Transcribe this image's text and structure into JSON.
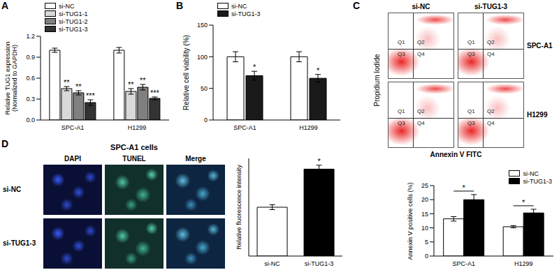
{
  "chart_data": [
    {
      "panel": "A",
      "type": "bar",
      "categories": [
        "SPC-A1",
        "H1299"
      ],
      "ylabel": [
        "Relative TUG1 expression",
        "(Normalized to GAPDH)"
      ],
      "ylim": [
        0,
        1.2
      ],
      "yticks": [
        {
          "value": 0,
          "label": "0.0"
        },
        0.3,
        0.6,
        0.9,
        1.2
      ],
      "legend": "upper left",
      "series": [
        {
          "name": "si-NC",
          "color": "#ffffff",
          "values": [
            1.0,
            1.0
          ],
          "errors": [
            0.03,
            0.04
          ]
        },
        {
          "name": "si-TUG1-1",
          "color": "#d9d9d9",
          "values": [
            0.45,
            0.41
          ],
          "errors": [
            0.03,
            0.04
          ],
          "significance": [
            "**",
            "**"
          ]
        },
        {
          "name": "si-TUG1-2",
          "color": "#808080",
          "values": [
            0.39,
            0.47
          ],
          "errors": [
            0.03,
            0.04
          ],
          "significance": [
            "**",
            "**"
          ]
        },
        {
          "name": "si-TUG1-3",
          "color": "#333333",
          "values": [
            0.25,
            0.31
          ],
          "errors": [
            0.04,
            0.02
          ],
          "significance": [
            "***",
            "***"
          ]
        }
      ]
    },
    {
      "panel": "B",
      "type": "bar",
      "categories": [
        "SPC-A1",
        "H1299"
      ],
      "ylabel": "Relative cell viability (%)",
      "ylim": [
        0,
        150
      ],
      "yticks": [
        0,
        50,
        100,
        150
      ],
      "legend": "upper left",
      "series": [
        {
          "name": "si-NC",
          "color": "#ffffff",
          "values": [
            100,
            100
          ],
          "errors": [
            8,
            8
          ]
        },
        {
          "name": "si-TUG1-3",
          "color": "#1a1a1a",
          "values": [
            70,
            66
          ],
          "errors": [
            7,
            6
          ],
          "significance": [
            "*",
            "*"
          ]
        }
      ]
    },
    {
      "panel": "C",
      "type": "bar",
      "categories": [
        "SPC-A1",
        "H1299"
      ],
      "ylabel": "Annexin V positive cells (%)",
      "ylim": [
        0,
        25
      ],
      "yticks": [
        0,
        5,
        10,
        15,
        20,
        25
      ],
      "legend": "upper right",
      "series": [
        {
          "name": "si-NC",
          "color": "#ffffff",
          "values": [
            13.2,
            10.4
          ],
          "errors": [
            0.8,
            0.4
          ]
        },
        {
          "name": "si-TUG1-3",
          "color": "#000000",
          "values": [
            20,
            15.3
          ],
          "errors": [
            1.8,
            1.3
          ]
        }
      ],
      "annotations": [
        {
          "text": "*",
          "category": "SPC-A1",
          "between": [
            "si-NC",
            "si-TUG1-3"
          ]
        },
        {
          "text": "*",
          "category": "H1299",
          "between": [
            "si-NC",
            "si-TUG1-3"
          ]
        }
      ]
    },
    {
      "panel": "D",
      "type": "bar",
      "categories": [
        "si-NC",
        "si-TUG1-3"
      ],
      "ylabel": "Relative fluorescence intensity",
      "ylim": [
        0,
        200
      ],
      "tick_labels": "x",
      "series": [
        {
          "colors": [
            "#ffffff",
            "#000000"
          ],
          "values": [
            100,
            178
          ],
          "errors": [
            5,
            8
          ],
          "significance": [
            null,
            "*"
          ]
        }
      ]
    }
  ],
  "flow_cytometry": {
    "x_label": "Annexin V FITC",
    "y_label": "Propidium Iodide",
    "columns": [
      "si-NC",
      "si-TUG1-3"
    ],
    "rows": [
      "SPC-A1",
      "H1299"
    ],
    "quadrants": [
      "Q1",
      "Q2",
      "Q3",
      "Q4"
    ]
  },
  "microscopy": {
    "title": "SPC-A1 cells",
    "columns": [
      "DAPI",
      "TUNEL",
      "Merge"
    ],
    "rows": [
      "si-NC",
      "si-TUG1-3"
    ]
  }
}
